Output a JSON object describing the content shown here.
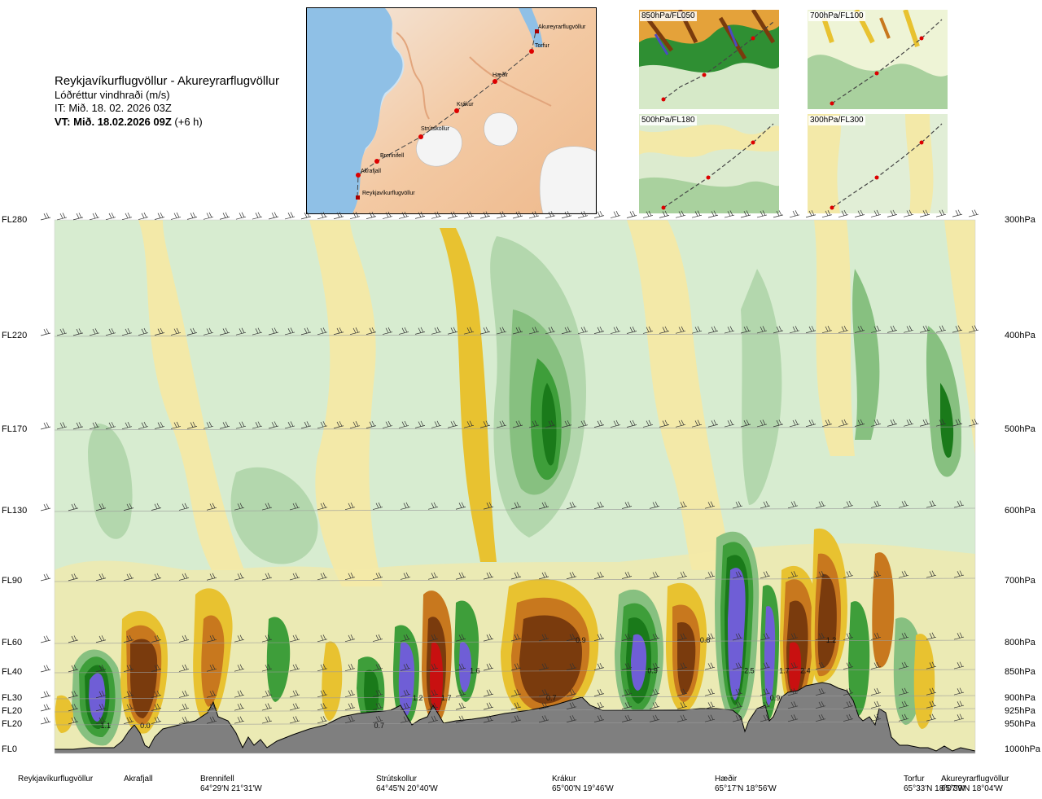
{
  "header": {
    "route": "Reykjavíkurflugvöllur - Akureyrarflugvöllur",
    "variable": "Lóðréttur vindhraði (m/s)",
    "issue_time": "IT: Mið. 18. 02. 2026 03Z",
    "valid_prefix": "VT: Mið. 18.02.2026 09Z",
    "valid_suffix": " (+6 h)"
  },
  "location_map": {
    "waypoints": [
      {
        "name": "Akureyrarflugvöllur"
      },
      {
        "name": "Torfur"
      },
      {
        "name": "Hæðir"
      },
      {
        "name": "Krákur"
      },
      {
        "name": "Strútskollur"
      },
      {
        "name": "Brennifell"
      },
      {
        "name": "Akrafjall"
      },
      {
        "name": "Reykjavíkurflugvöllur"
      }
    ]
  },
  "thumbnails": [
    {
      "label": "850hPa/FL050"
    },
    {
      "label": "700hPa/FL100"
    },
    {
      "label": "500hPa/FL180"
    },
    {
      "label": "300hPa/FL300"
    }
  ],
  "colors": {
    "strong_down": "#7a3b0d",
    "mod_down": "#c8781e",
    "weak_down": "#e8c230",
    "faint_down": "#f3e9a8",
    "neutral": "#d7ecd0",
    "faint_up": "#b3d7ad",
    "weak_up": "#87c080",
    "mod_up": "#3e9e3a",
    "strong_up": "#1a7a1a",
    "very_strong_up": "#6f5ed6",
    "extreme_down": "#c81010",
    "terrain": "#7f7f7f"
  },
  "chart_data": {
    "type": "heatmap",
    "title": "Lóðréttur vindhraði (m/s)",
    "xlabel": "",
    "ylabel": "",
    "flight_levels": [
      "FL280",
      "FL220",
      "FL170",
      "FL130",
      "FL90",
      "FL60",
      "FL40",
      "FL30",
      "FL20",
      "FL20",
      "FL0"
    ],
    "pressure_levels": [
      "300hPa",
      "400hPa",
      "500hPa",
      "600hPa",
      "700hPa",
      "800hPa",
      "850hPa",
      "900hPa",
      "925hPa",
      "950hPa",
      "1000hPa"
    ],
    "pressure_values": [
      300,
      400,
      500,
      600,
      700,
      800,
      850,
      900,
      925,
      950,
      1000
    ],
    "ylim": [
      1000,
      300
    ],
    "xlim": [
      0,
      1
    ],
    "stations": [
      {
        "name": "Reykjavíkurflugvöllur",
        "coord": "",
        "x": 0.0
      },
      {
        "name": "Akrafjall",
        "coord": "",
        "x": 0.08
      },
      {
        "name": "Brennifell",
        "coord": "64°29'N 21°31'W",
        "x": 0.18
      },
      {
        "name": "Strútskollur",
        "coord": "64°45'N 20°40'W",
        "x": 0.38
      },
      {
        "name": "Krákur",
        "coord": "65°00'N 19°46'W",
        "x": 0.57
      },
      {
        "name": "Hæðir",
        "coord": "65°17'N 18°56'W",
        "x": 0.76
      },
      {
        "name": "Torfur",
        "coord": "65°33'N 18°07'W",
        "x": 0.94
      },
      {
        "name": "Akureyrarflugvöllur",
        "coord": "65°39'N 18°04'W",
        "x": 1.0
      }
    ],
    "annotations": [
      {
        "text": "1.1",
        "x": 0.05,
        "p": 958
      },
      {
        "text": "0.0",
        "x": 0.093,
        "p": 958
      },
      {
        "text": "0.7",
        "x": 0.347,
        "p": 958
      },
      {
        "text": "1.2",
        "x": 0.389,
        "p": 905
      },
      {
        "text": "1.7",
        "x": 0.42,
        "p": 905
      },
      {
        "text": "1.6",
        "x": 0.451,
        "p": 852
      },
      {
        "text": "0.9",
        "x": 0.566,
        "p": 800
      },
      {
        "text": "0.7",
        "x": 0.534,
        "p": 905
      },
      {
        "text": "0.9",
        "x": 0.644,
        "p": 852
      },
      {
        "text": "0.8",
        "x": 0.701,
        "p": 800
      },
      {
        "text": "2.5",
        "x": 0.749,
        "p": 852
      },
      {
        "text": "1.7",
        "x": 0.787,
        "p": 852
      },
      {
        "text": "2.4",
        "x": 0.81,
        "p": 852
      },
      {
        "text": "0.9",
        "x": 0.777,
        "p": 905
      },
      {
        "text": "1.2",
        "x": 0.838,
        "p": 800
      }
    ]
  }
}
